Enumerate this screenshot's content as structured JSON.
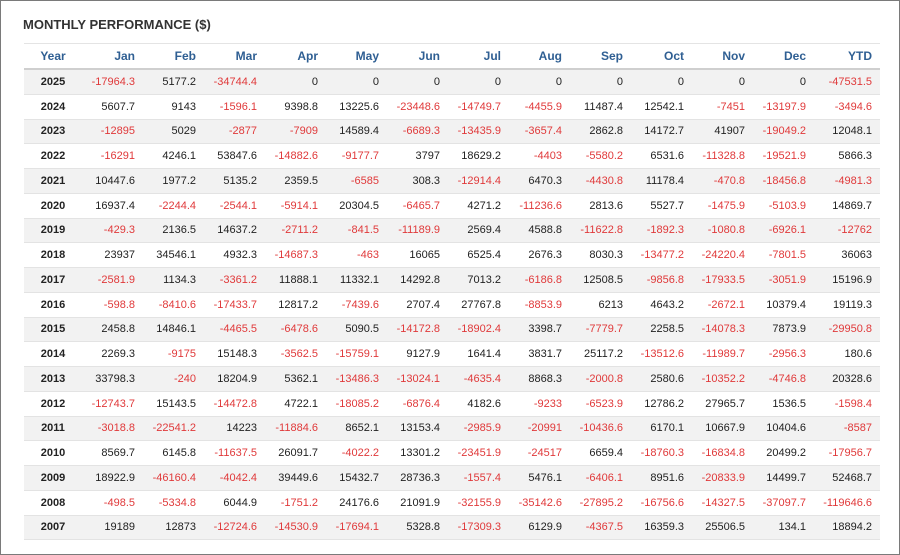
{
  "title": "MONTHLY PERFORMANCE ($)",
  "columns": [
    "Year",
    "Jan",
    "Feb",
    "Mar",
    "Apr",
    "May",
    "Jun",
    "Jul",
    "Aug",
    "Sep",
    "Oct",
    "Nov",
    "Dec",
    "YTD"
  ],
  "rows": [
    [
      "2025",
      "-17964.3",
      "5177.2",
      "-34744.4",
      "0",
      "0",
      "0",
      "0",
      "0",
      "0",
      "0",
      "0",
      "0",
      "-47531.5"
    ],
    [
      "2024",
      "5607.7",
      "9143",
      "-1596.1",
      "9398.8",
      "13225.6",
      "-23448.6",
      "-14749.7",
      "-4455.9",
      "11487.4",
      "12542.1",
      "-7451",
      "-13197.9",
      "-3494.6"
    ],
    [
      "2023",
      "-12895",
      "5029",
      "-2877",
      "-7909",
      "14589.4",
      "-6689.3",
      "-13435.9",
      "-3657.4",
      "2862.8",
      "14172.7",
      "41907",
      "-19049.2",
      "12048.1"
    ],
    [
      "2022",
      "-16291",
      "4246.1",
      "53847.6",
      "-14882.6",
      "-9177.7",
      "3797",
      "18629.2",
      "-4403",
      "-5580.2",
      "6531.6",
      "-11328.8",
      "-19521.9",
      "5866.3"
    ],
    [
      "2021",
      "10447.6",
      "1977.2",
      "5135.2",
      "2359.5",
      "-6585",
      "308.3",
      "-12914.4",
      "6470.3",
      "-4430.8",
      "11178.4",
      "-470.8",
      "-18456.8",
      "-4981.3"
    ],
    [
      "2020",
      "16937.4",
      "-2244.4",
      "-2544.1",
      "-5914.1",
      "20304.5",
      "-6465.7",
      "4271.2",
      "-11236.6",
      "2813.6",
      "5527.7",
      "-1475.9",
      "-5103.9",
      "14869.7"
    ],
    [
      "2019",
      "-429.3",
      "2136.5",
      "14637.2",
      "-2711.2",
      "-841.5",
      "-11189.9",
      "2569.4",
      "4588.8",
      "-11622.8",
      "-1892.3",
      "-1080.8",
      "-6926.1",
      "-12762"
    ],
    [
      "2018",
      "23937",
      "34546.1",
      "4932.3",
      "-14687.3",
      "-463",
      "16065",
      "6525.4",
      "2676.3",
      "8030.3",
      "-13477.2",
      "-24220.4",
      "-7801.5",
      "36063"
    ],
    [
      "2017",
      "-2581.9",
      "1134.3",
      "-3361.2",
      "11888.1",
      "11332.1",
      "14292.8",
      "7013.2",
      "-6186.8",
      "12508.5",
      "-9856.8",
      "-17933.5",
      "-3051.9",
      "15196.9"
    ],
    [
      "2016",
      "-598.8",
      "-8410.6",
      "-17433.7",
      "12817.2",
      "-7439.6",
      "2707.4",
      "27767.8",
      "-8853.9",
      "6213",
      "4643.2",
      "-2672.1",
      "10379.4",
      "19119.3"
    ],
    [
      "2015",
      "2458.8",
      "14846.1",
      "-4465.5",
      "-6478.6",
      "5090.5",
      "-14172.8",
      "-18902.4",
      "3398.7",
      "-7779.7",
      "2258.5",
      "-14078.3",
      "7873.9",
      "-29950.8"
    ],
    [
      "2014",
      "2269.3",
      "-9175",
      "15148.3",
      "-3562.5",
      "-15759.1",
      "9127.9",
      "1641.4",
      "3831.7",
      "25117.2",
      "-13512.6",
      "-11989.7",
      "-2956.3",
      "180.6"
    ],
    [
      "2013",
      "33798.3",
      "-240",
      "18204.9",
      "5362.1",
      "-13486.3",
      "-13024.1",
      "-4635.4",
      "8868.3",
      "-2000.8",
      "2580.6",
      "-10352.2",
      "-4746.8",
      "20328.6"
    ],
    [
      "2012",
      "-12743.7",
      "15143.5",
      "-14472.8",
      "4722.1",
      "-18085.2",
      "-6876.4",
      "4182.6",
      "-9233",
      "-6523.9",
      "12786.2",
      "27965.7",
      "1536.5",
      "-1598.4"
    ],
    [
      "2011",
      "-3018.8",
      "-22541.2",
      "14223",
      "-11884.6",
      "8652.1",
      "13153.4",
      "-2985.9",
      "-20991",
      "-10436.6",
      "6170.1",
      "10667.9",
      "10404.6",
      "-8587"
    ],
    [
      "2010",
      "8569.7",
      "6145.8",
      "-11637.5",
      "26091.7",
      "-4022.2",
      "13301.2",
      "-23451.9",
      "-24517",
      "6659.4",
      "-18760.3",
      "-16834.8",
      "20499.2",
      "-17956.7"
    ],
    [
      "2009",
      "18922.9",
      "-46160.4",
      "-4042.4",
      "39449.6",
      "15432.7",
      "28736.3",
      "-1557.4",
      "5476.1",
      "-6406.1",
      "8951.6",
      "-20833.9",
      "14499.7",
      "52468.7"
    ],
    [
      "2008",
      "-498.5",
      "-5334.8",
      "6044.9",
      "-1751.2",
      "24176.6",
      "21091.9",
      "-32155.9",
      "-35142.6",
      "-27895.2",
      "-16756.6",
      "-14327.5",
      "-37097.7",
      "-119646.6"
    ],
    [
      "2007",
      "19189",
      "12873",
      "-12724.6",
      "-14530.9",
      "-17694.1",
      "5328.8",
      "-17309.3",
      "6129.9",
      "-4367.5",
      "16359.3",
      "25506.5",
      "134.1",
      "18894.2"
    ]
  ],
  "colors": {
    "header_text": "#2f5f93",
    "negative": "#e0393a",
    "positive": "#222222",
    "stripe": "#f2f2f2"
  }
}
